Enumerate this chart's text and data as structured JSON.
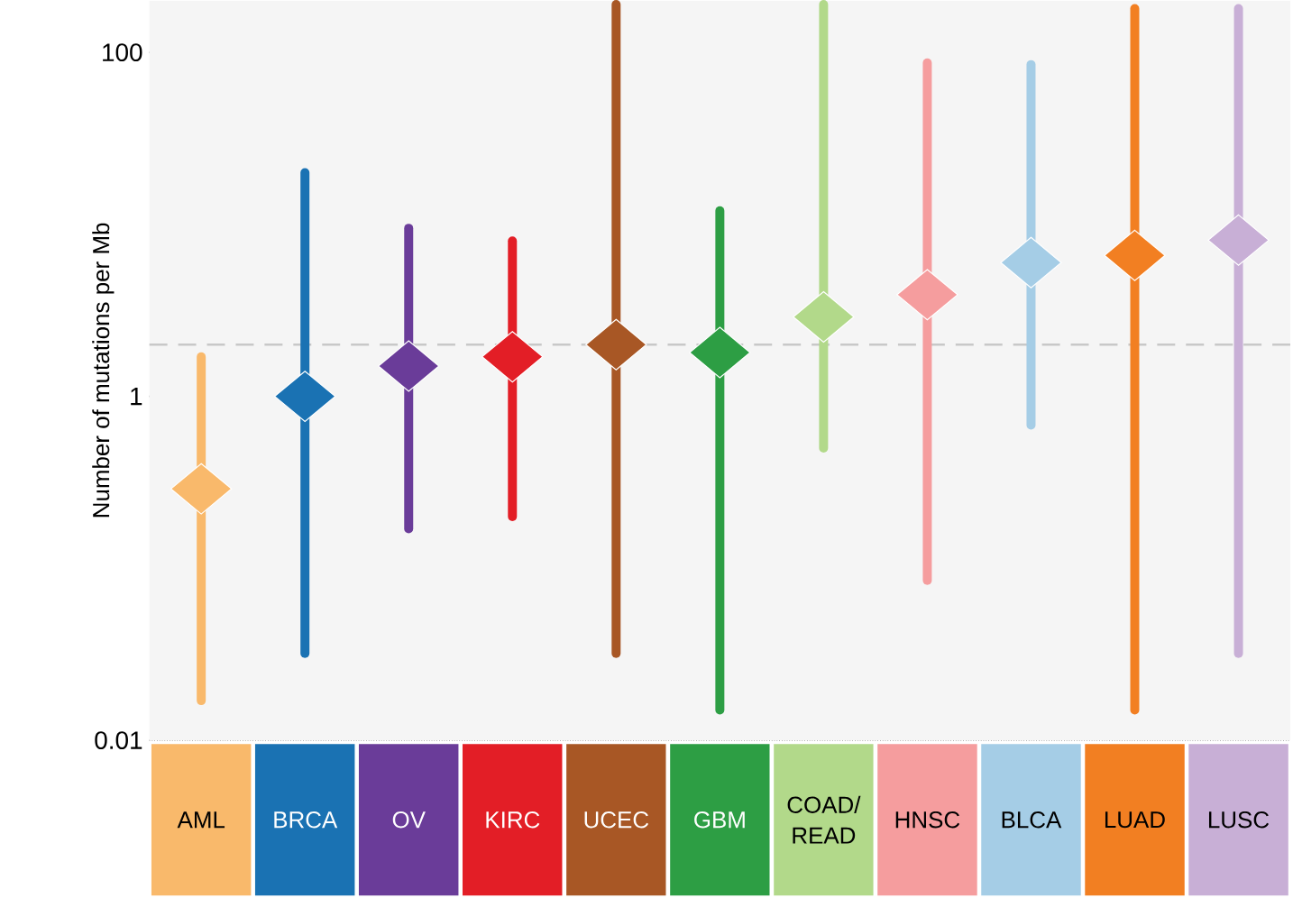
{
  "chart_data": {
    "type": "scatter",
    "ylabel": "Number of mutations per Mb",
    "categories": [
      "AML",
      "BRCA",
      "OV",
      "KIRC",
      "UCEC",
      "GBM",
      "COAD/ READ",
      "HNSC",
      "BLCA",
      "LUAD",
      "LUSC"
    ],
    "values": [
      0.29,
      1.0,
      1.5,
      1.7,
      2.0,
      1.8,
      2.9,
      3.9,
      6.0,
      6.6,
      8.1
    ],
    "errors": [
      [
        0.017,
        1.7
      ],
      [
        0.032,
        20
      ],
      [
        0.17,
        9.5
      ],
      [
        0.2,
        8
      ],
      [
        0.032,
        190
      ],
      [
        0.015,
        12
      ],
      [
        0.5,
        190
      ],
      [
        0.085,
        87
      ],
      [
        0.68,
        85
      ],
      [
        0.015,
        180
      ],
      [
        0.032,
        180
      ]
    ],
    "colors": [
      "#f9b96b",
      "#1a72b3",
      "#6a3c99",
      "#e31e26",
      "#a85725",
      "#2d9e44",
      "#b2d98a",
      "#f59d9e",
      "#a5cde6",
      "#f27f22",
      "#c8afd6"
    ],
    "marker": "diamond",
    "log": "y",
    "ylim": [
      0.01,
      200
    ],
    "yticks": [
      0.01,
      1,
      100
    ],
    "grid": "y",
    "ref_lines": [
      {
        "axis": "y",
        "value": 2,
        "line_style": "dashed",
        "color": "#c8c8c8"
      }
    ]
  }
}
